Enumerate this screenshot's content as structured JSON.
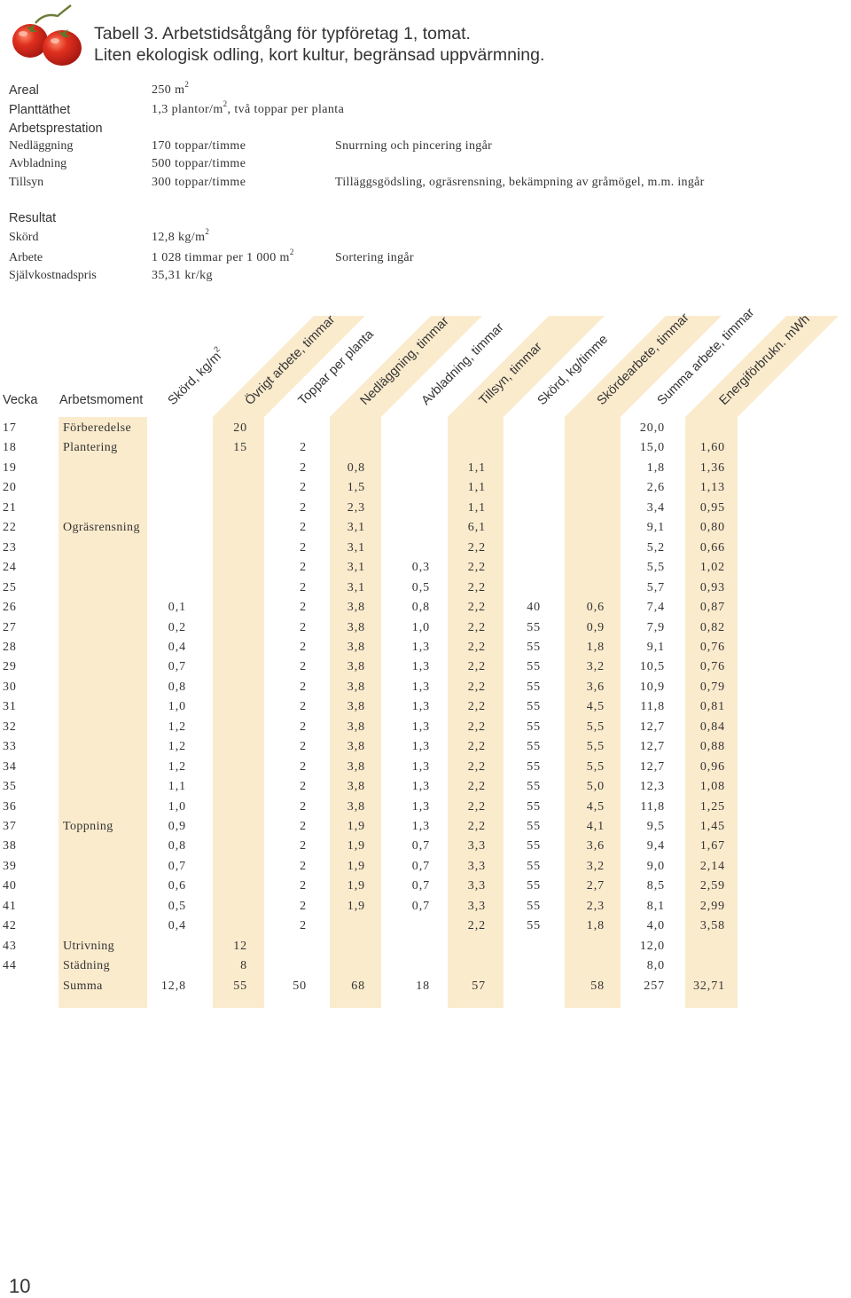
{
  "title": {
    "line1": "Tabell 3. Arbetstidsåtgång för typföretag 1, tomat.",
    "line2": "Liten ekologisk odling, kort kultur, begränsad uppvärmning."
  },
  "info": {
    "areal": {
      "label": "Areal",
      "value": "250 m",
      "sup": "2"
    },
    "planttathet": {
      "label": "Planttäthet",
      "value_a": "1,3 plantor/m",
      "sup": "2",
      "value_b": ", två toppar per planta"
    },
    "arbetsprestation_heading": "Arbetsprestation",
    "nedlaggning": {
      "label": "Nedläggning",
      "value": "170 toppar/timme",
      "note": "Snurrning och pincering ingår"
    },
    "avbladning": {
      "label": "Avbladning",
      "value": "500 toppar/timme"
    },
    "tillsyn": {
      "label": "Tillsyn",
      "value": "300 toppar/timme",
      "note": "Tilläggsgödsling, ogräsrensning, bekämpning av gråmögel, m.m. ingår"
    },
    "resultat_heading": "Resultat",
    "skord": {
      "label": "Skörd",
      "value": "12,8 kg/m",
      "sup": "2"
    },
    "arbete": {
      "label": "Arbete",
      "value": "1 028 timmar per 1 000 m",
      "sup": "2",
      "note": "Sortering ingår"
    },
    "sjalvkostnadspris": {
      "label": "Självkostnadspris",
      "value": "35,31 kr/kg"
    }
  },
  "table": {
    "header_vecka": "Vecka",
    "header_arbetsmoment": "Arbetsmoment",
    "columns": [
      {
        "key": "skord",
        "label": "Skörd, kg/m",
        "sup": "2"
      },
      {
        "key": "ovrigt",
        "label": "Övrigt arbete, timmar"
      },
      {
        "key": "toppar",
        "label": "Toppar per planta"
      },
      {
        "key": "nedl",
        "label": "Nedläggning, timmar"
      },
      {
        "key": "avbl",
        "label": "Avbladning, timmar"
      },
      {
        "key": "tillsyn",
        "label": "Tillsyn, timmar"
      },
      {
        "key": "skord_tim",
        "label": "Skörd, kg/timme"
      },
      {
        "key": "skordearb",
        "label": "Skördearbete, timmar"
      },
      {
        "key": "summa",
        "label": "Summa arbete, timmar"
      },
      {
        "key": "energi",
        "label": "Energiförbrukn. mWh"
      }
    ],
    "rows": [
      {
        "vecka": "17",
        "moment": "Förberedelse",
        "skord": "",
        "ovrigt": "20",
        "toppar": "",
        "nedl": "",
        "avbl": "",
        "tillsyn": "",
        "skord_tim": "",
        "skordearb": "",
        "summa": "20,0",
        "energi": ""
      },
      {
        "vecka": "18",
        "moment": "Plantering",
        "skord": "",
        "ovrigt": "15",
        "toppar": "2",
        "nedl": "",
        "avbl": "",
        "tillsyn": "",
        "skord_tim": "",
        "skordearb": "",
        "summa": "15,0",
        "energi": "1,60"
      },
      {
        "vecka": "19",
        "moment": "",
        "skord": "",
        "ovrigt": "",
        "toppar": "2",
        "nedl": "0,8",
        "avbl": "",
        "tillsyn": "1,1",
        "skord_tim": "",
        "skordearb": "",
        "summa": "1,8",
        "energi": "1,36"
      },
      {
        "vecka": "20",
        "moment": "",
        "skord": "",
        "ovrigt": "",
        "toppar": "2",
        "nedl": "1,5",
        "avbl": "",
        "tillsyn": "1,1",
        "skord_tim": "",
        "skordearb": "",
        "summa": "2,6",
        "energi": "1,13"
      },
      {
        "vecka": "21",
        "moment": "",
        "skord": "",
        "ovrigt": "",
        "toppar": "2",
        "nedl": "2,3",
        "avbl": "",
        "tillsyn": "1,1",
        "skord_tim": "",
        "skordearb": "",
        "summa": "3,4",
        "energi": "0,95"
      },
      {
        "vecka": "22",
        "moment": "Ogräsrensning",
        "skord": "",
        "ovrigt": "",
        "toppar": "2",
        "nedl": "3,1",
        "avbl": "",
        "tillsyn": "6,1",
        "skord_tim": "",
        "skordearb": "",
        "summa": "9,1",
        "energi": "0,80"
      },
      {
        "vecka": "23",
        "moment": "",
        "skord": "",
        "ovrigt": "",
        "toppar": "2",
        "nedl": "3,1",
        "avbl": "",
        "tillsyn": "2,2",
        "skord_tim": "",
        "skordearb": "",
        "summa": "5,2",
        "energi": "0,66"
      },
      {
        "vecka": "24",
        "moment": "",
        "skord": "",
        "ovrigt": "",
        "toppar": "2",
        "nedl": "3,1",
        "avbl": "0,3",
        "tillsyn": "2,2",
        "skord_tim": "",
        "skordearb": "",
        "summa": "5,5",
        "energi": "1,02"
      },
      {
        "vecka": "25",
        "moment": "",
        "skord": "",
        "ovrigt": "",
        "toppar": "2",
        "nedl": "3,1",
        "avbl": "0,5",
        "tillsyn": "2,2",
        "skord_tim": "",
        "skordearb": "",
        "summa": "5,7",
        "energi": "0,93"
      },
      {
        "vecka": "26",
        "moment": "",
        "skord": "0,1",
        "ovrigt": "",
        "toppar": "2",
        "nedl": "3,8",
        "avbl": "0,8",
        "tillsyn": "2,2",
        "skord_tim": "40",
        "skordearb": "0,6",
        "summa": "7,4",
        "energi": "0,87"
      },
      {
        "vecka": "27",
        "moment": "",
        "skord": "0,2",
        "ovrigt": "",
        "toppar": "2",
        "nedl": "3,8",
        "avbl": "1,0",
        "tillsyn": "2,2",
        "skord_tim": "55",
        "skordearb": "0,9",
        "summa": "7,9",
        "energi": "0,82"
      },
      {
        "vecka": "28",
        "moment": "",
        "skord": "0,4",
        "ovrigt": "",
        "toppar": "2",
        "nedl": "3,8",
        "avbl": "1,3",
        "tillsyn": "2,2",
        "skord_tim": "55",
        "skordearb": "1,8",
        "summa": "9,1",
        "energi": "0,76"
      },
      {
        "vecka": "29",
        "moment": "",
        "skord": "0,7",
        "ovrigt": "",
        "toppar": "2",
        "nedl": "3,8",
        "avbl": "1,3",
        "tillsyn": "2,2",
        "skord_tim": "55",
        "skordearb": "3,2",
        "summa": "10,5",
        "energi": "0,76"
      },
      {
        "vecka": "30",
        "moment": "",
        "skord": "0,8",
        "ovrigt": "",
        "toppar": "2",
        "nedl": "3,8",
        "avbl": "1,3",
        "tillsyn": "2,2",
        "skord_tim": "55",
        "skordearb": "3,6",
        "summa": "10,9",
        "energi": "0,79"
      },
      {
        "vecka": "31",
        "moment": "",
        "skord": "1,0",
        "ovrigt": "",
        "toppar": "2",
        "nedl": "3,8",
        "avbl": "1,3",
        "tillsyn": "2,2",
        "skord_tim": "55",
        "skordearb": "4,5",
        "summa": "11,8",
        "energi": "0,81"
      },
      {
        "vecka": "32",
        "moment": "",
        "skord": "1,2",
        "ovrigt": "",
        "toppar": "2",
        "nedl": "3,8",
        "avbl": "1,3",
        "tillsyn": "2,2",
        "skord_tim": "55",
        "skordearb": "5,5",
        "summa": "12,7",
        "energi": "0,84"
      },
      {
        "vecka": "33",
        "moment": "",
        "skord": "1,2",
        "ovrigt": "",
        "toppar": "2",
        "nedl": "3,8",
        "avbl": "1,3",
        "tillsyn": "2,2",
        "skord_tim": "55",
        "skordearb": "5,5",
        "summa": "12,7",
        "energi": "0,88"
      },
      {
        "vecka": "34",
        "moment": "",
        "skord": "1,2",
        "ovrigt": "",
        "toppar": "2",
        "nedl": "3,8",
        "avbl": "1,3",
        "tillsyn": "2,2",
        "skord_tim": "55",
        "skordearb": "5,5",
        "summa": "12,7",
        "energi": "0,96"
      },
      {
        "vecka": "35",
        "moment": "",
        "skord": "1,1",
        "ovrigt": "",
        "toppar": "2",
        "nedl": "3,8",
        "avbl": "1,3",
        "tillsyn": "2,2",
        "skord_tim": "55",
        "skordearb": "5,0",
        "summa": "12,3",
        "energi": "1,08"
      },
      {
        "vecka": "36",
        "moment": "",
        "skord": "1,0",
        "ovrigt": "",
        "toppar": "2",
        "nedl": "3,8",
        "avbl": "1,3",
        "tillsyn": "2,2",
        "skord_tim": "55",
        "skordearb": "4,5",
        "summa": "11,8",
        "energi": "1,25"
      },
      {
        "vecka": "37",
        "moment": "Toppning",
        "skord": "0,9",
        "ovrigt": "",
        "toppar": "2",
        "nedl": "1,9",
        "avbl": "1,3",
        "tillsyn": "2,2",
        "skord_tim": "55",
        "skordearb": "4,1",
        "summa": "9,5",
        "energi": "1,45"
      },
      {
        "vecka": "38",
        "moment": "",
        "skord": "0,8",
        "ovrigt": "",
        "toppar": "2",
        "nedl": "1,9",
        "avbl": "0,7",
        "tillsyn": "3,3",
        "skord_tim": "55",
        "skordearb": "3,6",
        "summa": "9,4",
        "energi": "1,67"
      },
      {
        "vecka": "39",
        "moment": "",
        "skord": "0,7",
        "ovrigt": "",
        "toppar": "2",
        "nedl": "1,9",
        "avbl": "0,7",
        "tillsyn": "3,3",
        "skord_tim": "55",
        "skordearb": "3,2",
        "summa": "9,0",
        "energi": "2,14"
      },
      {
        "vecka": "40",
        "moment": "",
        "skord": "0,6",
        "ovrigt": "",
        "toppar": "2",
        "nedl": "1,9",
        "avbl": "0,7",
        "tillsyn": "3,3",
        "skord_tim": "55",
        "skordearb": "2,7",
        "summa": "8,5",
        "energi": "2,59"
      },
      {
        "vecka": "41",
        "moment": "",
        "skord": "0,5",
        "ovrigt": "",
        "toppar": "2",
        "nedl": "1,9",
        "avbl": "0,7",
        "tillsyn": "3,3",
        "skord_tim": "55",
        "skordearb": "2,3",
        "summa": "8,1",
        "energi": "2,99"
      },
      {
        "vecka": "42",
        "moment": "",
        "skord": "0,4",
        "ovrigt": "",
        "toppar": "2",
        "nedl": "",
        "avbl": "",
        "tillsyn": "2,2",
        "skord_tim": "55",
        "skordearb": "1,8",
        "summa": "4,0",
        "energi": "3,58"
      },
      {
        "vecka": "43",
        "moment": "Utrivning",
        "skord": "",
        "ovrigt": "12",
        "toppar": "",
        "nedl": "",
        "avbl": "",
        "tillsyn": "",
        "skord_tim": "",
        "skordearb": "",
        "summa": "12,0",
        "energi": ""
      },
      {
        "vecka": "44",
        "moment": "Städning",
        "skord": "",
        "ovrigt": "8",
        "toppar": "",
        "nedl": "",
        "avbl": "",
        "tillsyn": "",
        "skord_tim": "",
        "skordearb": "",
        "summa": "8,0",
        "energi": ""
      },
      {
        "vecka": "",
        "moment": "Summa",
        "skord": "12,8",
        "ovrigt": "55",
        "toppar": "50",
        "nedl": "68",
        "avbl": "18",
        "tillsyn": "57",
        "skord_tim": "",
        "skordearb": "58",
        "summa": "257",
        "energi": "32,71"
      }
    ]
  },
  "page_number": "10",
  "colors": {
    "band": "#fbebcd",
    "text": "#333333",
    "tomato": "#d9261c"
  },
  "icons": {
    "logo": "tomato-icon"
  }
}
